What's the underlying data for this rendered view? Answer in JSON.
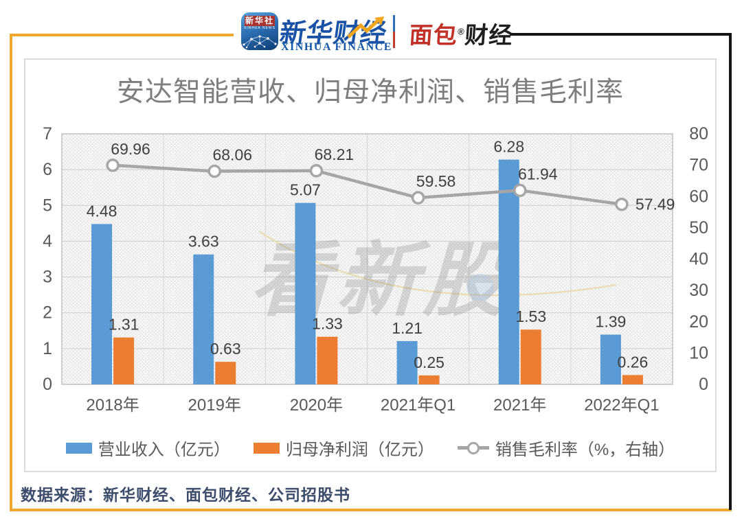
{
  "header": {
    "xinhua_app": {
      "cn": "新华社",
      "en": "XINHUA NEWS"
    },
    "xinhua_finance": {
      "cn": "新华财经",
      "en": "XINHUA FINANCE"
    },
    "mianbao": {
      "red": "面包",
      "reg": "®",
      "black": "财经"
    }
  },
  "colors": {
    "frame_gold": "#EFA72E",
    "frame_black": "#141414",
    "bar_blue": "#5B9BD5",
    "bar_orange": "#ED7D31",
    "line_gray": "#A6A6A6",
    "title_gray": "#7E7E7E",
    "axis_text": "#595959",
    "data_label_text": "#404040",
    "footer_text": "#3C4C6A"
  },
  "chart_data": {
    "type": "bar",
    "title": "安达智能营收、归母净利润、销售毛利率",
    "categories": [
      "2018年",
      "2019年",
      "2020年",
      "2021年Q1",
      "2021年",
      "2022年Q1"
    ],
    "series": [
      {
        "name": "营业收入（亿元）",
        "type": "bar",
        "axis": "left",
        "color": "#5B9BD5",
        "values": [
          4.48,
          3.63,
          5.07,
          1.21,
          6.28,
          1.39
        ]
      },
      {
        "name": "归母净利润（亿元）",
        "type": "bar",
        "axis": "left",
        "color": "#ED7D31",
        "values": [
          1.31,
          0.63,
          1.33,
          0.25,
          1.53,
          0.26
        ]
      },
      {
        "name": "销售毛利率（%，右轴）",
        "type": "line",
        "axis": "right",
        "color": "#A6A6A6",
        "marker": "open-circle",
        "values": [
          69.96,
          68.06,
          68.21,
          59.58,
          61.94,
          57.49
        ]
      }
    ],
    "left_axis": {
      "min": 0,
      "max": 7,
      "ticks": [
        0,
        1,
        2,
        3,
        4,
        5,
        6,
        7
      ]
    },
    "right_axis": {
      "min": 0,
      "max": 80,
      "ticks": [
        0,
        10,
        20,
        30,
        40,
        50,
        60,
        70,
        80
      ]
    },
    "grid": true,
    "plot_background": "diagonal-hatch",
    "legend_position": "bottom",
    "watermark": "看新股"
  },
  "footer": {
    "source": "数据来源：新华财经、面包财经、公司招股书"
  }
}
